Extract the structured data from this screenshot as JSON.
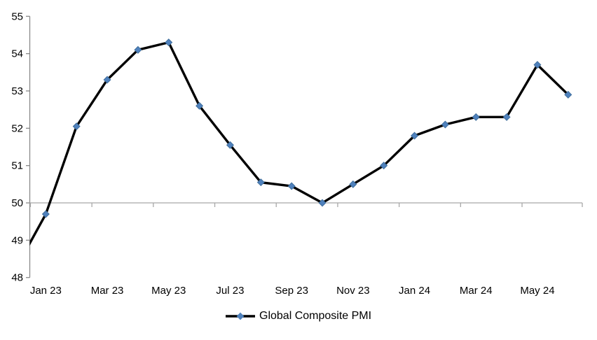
{
  "page": {
    "background": "#ffffff"
  },
  "chart_data": {
    "type": "line",
    "title": "",
    "categories": [
      "Dec 22",
      "Jan 23",
      "Feb 23",
      "Mar 23",
      "Apr 23",
      "May 23",
      "Jun 23",
      "Jul 23",
      "Aug 23",
      "Sep 23",
      "Oct 23",
      "Nov 23",
      "Dec 23",
      "Jan 24",
      "Feb 24",
      "Mar 24",
      "Apr 24",
      "May 24",
      "Jun 24"
    ],
    "series": [
      {
        "name": "Global Composite PMI",
        "values": [
          48.2,
          49.7,
          52.05,
          53.3,
          54.1,
          54.3,
          52.6,
          51.55,
          50.55,
          50.45,
          50.0,
          50.5,
          51.0,
          51.8,
          52.1,
          52.3,
          52.3,
          53.7,
          52.9
        ]
      }
    ],
    "first_category_partially_clipped_at_left_axis": true,
    "ylim": [
      48,
      55
    ],
    "y_ticks": [
      55,
      54,
      53,
      52,
      51,
      50,
      49,
      48
    ],
    "x_axis_cross_value": 50,
    "x_tick_labels": [
      "Jan 23",
      "Mar 23",
      "May 23",
      "Jul 23",
      "Sep 23",
      "Nov 23",
      "Jan 24",
      "Mar 24",
      "May 24"
    ],
    "x_label_interval": 2,
    "grid": "off",
    "legend": {
      "position": "bottom-center",
      "label": "Global Composite PMI"
    },
    "colors": {
      "line": "#000000",
      "marker_fill": "#4f81bd",
      "marker_stroke": "#3f6e9c",
      "axis": "#8a8a8a",
      "cross_axis": "#a8a8a8",
      "label_text": "#000000"
    }
  }
}
